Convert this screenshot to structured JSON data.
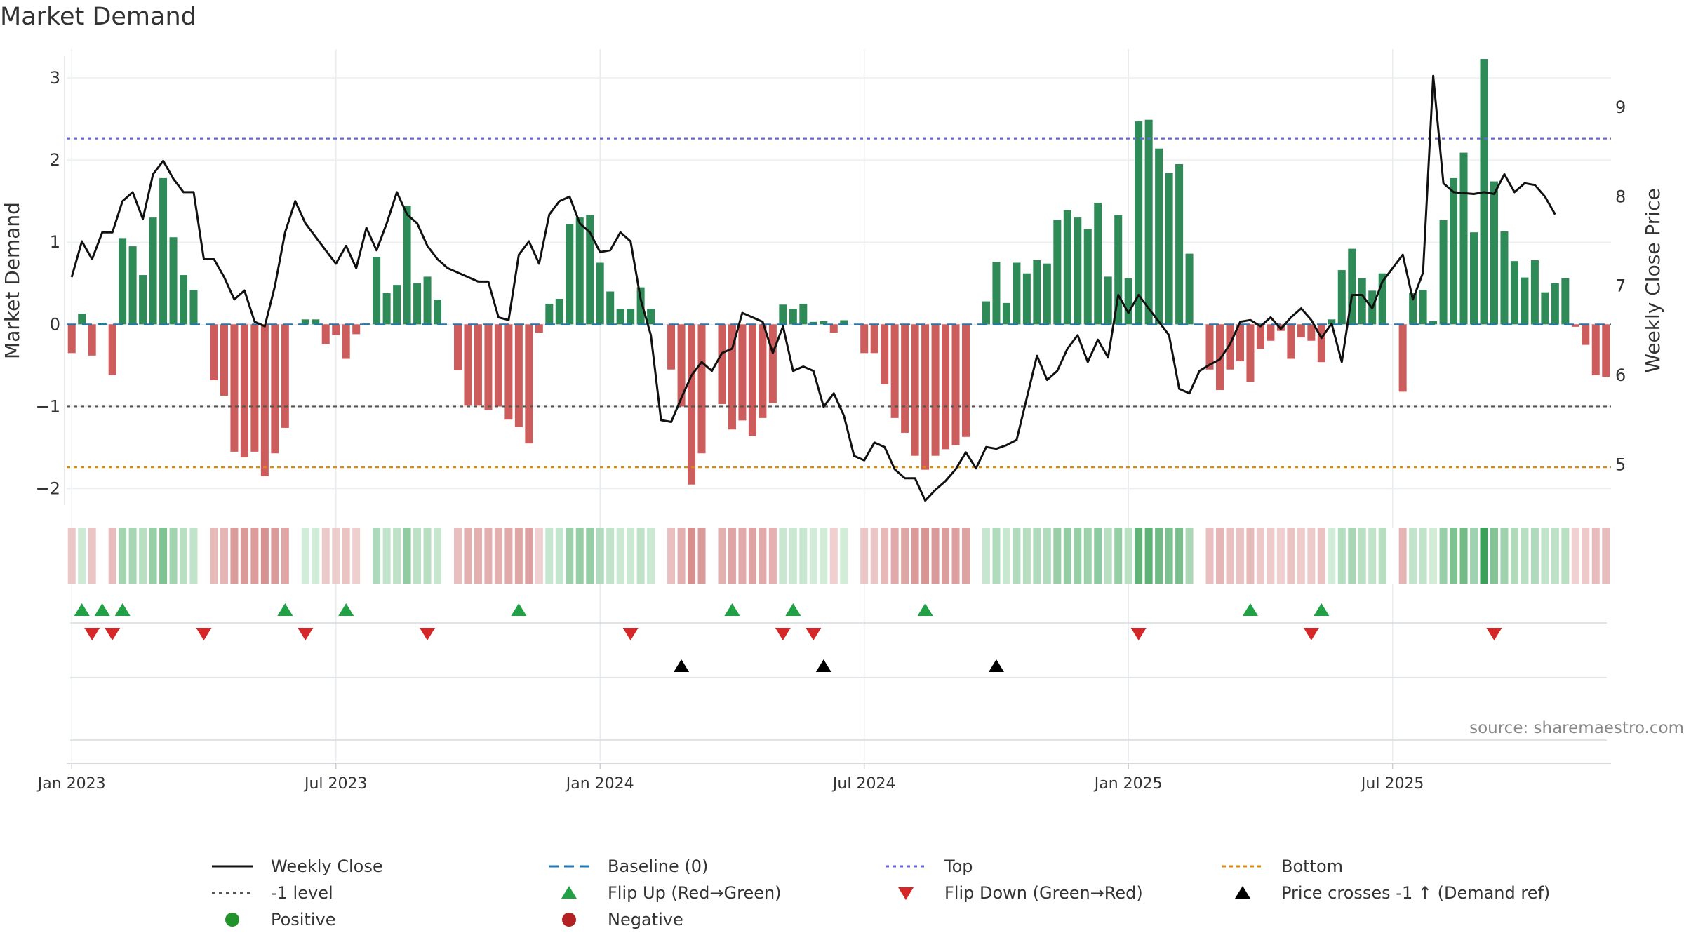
{
  "page": {
    "title": "Market Demand",
    "source": "source: sharemaestro.com"
  },
  "colors": {
    "positive_bar": "#2e8b57",
    "negative_bar": "#cd5c5c",
    "price_line": "#111111",
    "baseline": "#1f77b4",
    "top_line": "#6666dd",
    "bottom_line": "#e08a00",
    "minus1_line": "#555555",
    "flip_up": "#22a045",
    "flip_down": "#d62728",
    "cross": "#000000",
    "positive_dot": "#22922a",
    "negative_dot": "#b22222"
  },
  "legend": [
    {
      "label": "Weekly Close",
      "symbol": "line-solid",
      "color": "#111111"
    },
    {
      "label": "Baseline (0)",
      "symbol": "line-dash",
      "color": "#1f77b4"
    },
    {
      "label": "Top",
      "symbol": "line-dot",
      "color": "#6666dd"
    },
    {
      "label": "Bottom",
      "symbol": "line-dot",
      "color": "#e08a00"
    },
    {
      "label": "-1 level",
      "symbol": "line-dot",
      "color": "#555555"
    },
    {
      "label": "Flip Up (Red→Green)",
      "symbol": "triangle-up",
      "color": "#22a045"
    },
    {
      "label": "Flip Down (Green→Red)",
      "symbol": "triangle-down",
      "color": "#d62728"
    },
    {
      "label": "Price crosses -1 ↑ (Demand ref)",
      "symbol": "triangle-up",
      "color": "#000000"
    },
    {
      "label": "Positive",
      "symbol": "dot",
      "color": "#22922a"
    },
    {
      "label": "Negative",
      "symbol": "dot",
      "color": "#b22222"
    }
  ],
  "chart_data": {
    "type": "bar",
    "ylabel": "Market Demand",
    "y2label": "Weekly Close Price",
    "ylim": [
      -2.2,
      3.35
    ],
    "y2lim": [
      4.55,
      9.65
    ],
    "yticks": [
      -2,
      -1,
      0,
      1,
      2,
      3
    ],
    "y2ticks": [
      5,
      6,
      7,
      8,
      9
    ],
    "xticks": [
      "Jan 2023",
      "Jul 2023",
      "Jan 2024",
      "Jul 2024",
      "Jan 2025",
      "Jul 2025"
    ],
    "xtick_weeks": [
      0.5,
      26.5,
      52.5,
      78.5,
      104.5,
      130.5
    ],
    "reference_lines": {
      "top": 2.26,
      "bottom": -1.74,
      "minus1": -1,
      "baseline": 0
    },
    "grid": true,
    "series": [
      {
        "name": "Market Demand",
        "type": "bar",
        "values": [
          -0.35,
          0.13,
          -0.38,
          0.02,
          -0.62,
          1.05,
          0.95,
          0.6,
          1.3,
          1.78,
          1.06,
          0.6,
          0.42,
          0.0,
          -0.68,
          -0.87,
          -1.55,
          -1.62,
          -1.55,
          -1.85,
          -1.57,
          -1.26,
          0.0,
          0.06,
          0.06,
          -0.24,
          -0.13,
          -0.42,
          -0.12,
          0.01,
          0.82,
          0.38,
          0.48,
          1.44,
          0.5,
          0.58,
          0.3,
          0.0,
          -0.56,
          -0.99,
          -0.99,
          -1.04,
          -1.0,
          -1.16,
          -1.25,
          -1.45,
          -0.1,
          0.25,
          0.31,
          1.22,
          1.3,
          1.33,
          0.75,
          0.4,
          0.19,
          0.19,
          0.45,
          0.19,
          0.0,
          -0.55,
          -1.0,
          -1.95,
          -1.57,
          0.0,
          -0.97,
          -1.28,
          -1.17,
          -1.36,
          -1.14,
          -0.96,
          0.24,
          0.19,
          0.25,
          0.03,
          0.04,
          -0.1,
          0.05,
          0.0,
          -0.35,
          -0.35,
          -0.73,
          -1.14,
          -1.32,
          -1.6,
          -1.77,
          -1.6,
          -1.52,
          -1.47,
          -1.37,
          0.0,
          0.28,
          0.76,
          0.26,
          0.75,
          0.62,
          0.78,
          0.74,
          1.27,
          1.39,
          1.3,
          1.16,
          1.48,
          0.58,
          1.33,
          0.56,
          2.47,
          2.49,
          2.14,
          1.84,
          1.95,
          0.86,
          0.0,
          -0.55,
          -0.8,
          -0.55,
          -0.45,
          -0.7,
          -0.3,
          -0.2,
          -0.08,
          -0.42,
          -0.16,
          -0.2,
          -0.46,
          0.06,
          0.66,
          0.92,
          0.56,
          0.41,
          0.62,
          0.0,
          -0.82,
          0.38,
          0.42,
          0.04,
          1.27,
          1.78,
          2.09,
          1.12,
          3.23,
          1.74,
          1.13,
          0.77,
          0.57,
          0.78,
          0.39,
          0.5,
          0.56,
          -0.03,
          -0.25,
          -0.62,
          -0.64
        ]
      },
      {
        "name": "Weekly Close",
        "type": "line",
        "values": [
          7.1,
          7.5,
          7.3,
          7.6,
          7.6,
          7.95,
          8.05,
          7.75,
          8.25,
          8.4,
          8.2,
          8.05,
          8.05,
          7.3,
          7.3,
          7.1,
          6.85,
          6.95,
          6.6,
          6.55,
          7.0,
          7.6,
          7.95,
          7.7,
          7.55,
          7.4,
          7.25,
          7.45,
          7.2,
          7.65,
          7.4,
          7.7,
          8.05,
          7.8,
          7.7,
          7.45,
          7.3,
          7.2,
          7.15,
          7.1,
          7.05,
          7.05,
          6.65,
          6.62,
          7.35,
          7.5,
          7.25,
          7.8,
          7.95,
          8.0,
          7.7,
          7.6,
          7.38,
          7.4,
          7.6,
          7.5,
          6.85,
          6.45,
          5.5,
          5.48,
          5.75,
          6.0,
          6.15,
          6.05,
          6.25,
          6.3,
          6.7,
          6.65,
          6.6,
          6.25,
          6.55,
          6.05,
          6.1,
          6.05,
          5.65,
          5.8,
          5.55,
          5.1,
          5.05,
          5.25,
          5.2,
          4.95,
          4.85,
          4.85,
          4.6,
          4.72,
          4.82,
          4.95,
          5.14,
          4.96,
          5.2,
          5.18,
          5.22,
          5.28,
          5.75,
          6.22,
          5.95,
          6.05,
          6.3,
          6.45,
          6.15,
          6.4,
          6.2,
          6.9,
          6.7,
          6.9,
          6.75,
          6.6,
          6.45,
          5.85,
          5.8,
          6.05,
          6.12,
          6.18,
          6.35,
          6.6,
          6.62,
          6.55,
          6.65,
          6.52,
          6.65,
          6.75,
          6.62,
          6.42,
          6.58,
          6.15,
          6.9,
          6.9,
          6.75,
          7.05,
          7.2,
          7.35,
          6.85,
          7.15,
          9.35,
          8.15,
          8.05,
          8.04,
          8.03,
          8.05,
          8.03,
          8.25,
          8.05,
          8.15,
          8.13,
          8.0,
          7.8
        ]
      }
    ],
    "signals": {
      "flip_up_weeks": [
        1,
        3,
        5,
        21,
        27,
        44,
        65,
        71,
        84,
        116,
        123
      ],
      "flip_down_weeks": [
        2,
        4,
        13,
        23,
        35,
        55,
        70,
        73,
        105,
        122,
        140
      ],
      "price_cross_weeks": [
        60,
        74,
        91
      ]
    }
  }
}
